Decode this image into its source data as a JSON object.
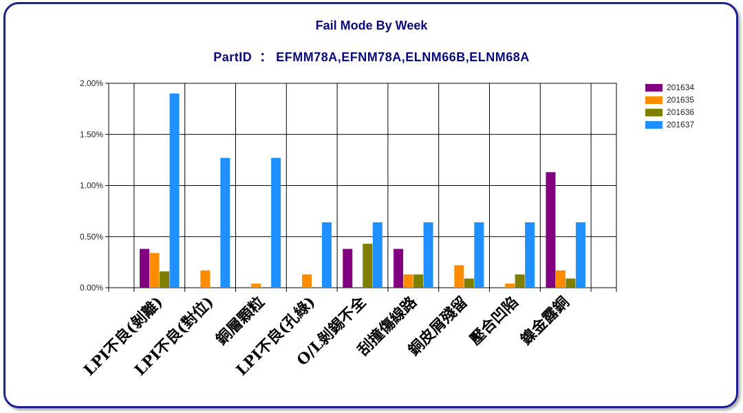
{
  "title": "Fail Mode By Week",
  "subtitle": "PartID  ： EFMM78A,EFNM78A,ELNM66B,ELNM68A",
  "chart_data": {
    "type": "bar",
    "categories": [
      "LPI不良(剝離)",
      "LPI不良(對位)",
      "銅層顆粒",
      "LPI不良(孔綠)",
      "O/L剝錫不全",
      "刮撞傷線路",
      "銅皮屑殘留",
      "壓合凹陷",
      "鎳金露銅"
    ],
    "series": [
      {
        "name": "201634",
        "color": "#800080",
        "values": [
          0.38,
          0,
          0,
          0,
          0.38,
          0.38,
          0,
          0,
          1.13
        ]
      },
      {
        "name": "201635",
        "color": "#ff8c00",
        "values": [
          0.34,
          0.17,
          0.04,
          0.13,
          0,
          0.13,
          0.22,
          0.04,
          0.17
        ]
      },
      {
        "name": "201636",
        "color": "#808000",
        "values": [
          0.16,
          0,
          0,
          0,
          0.43,
          0.13,
          0.09,
          0.13,
          0.09
        ]
      },
      {
        "name": "201637",
        "color": "#1e90ff",
        "values": [
          1.9,
          1.27,
          1.27,
          0.64,
          0.64,
          0.64,
          0.64,
          0.64,
          0.64
        ]
      }
    ],
    "ylim": [
      0,
      2.0
    ],
    "yticks": [
      "0.00%",
      "0.50%",
      "1.00%",
      "1.50%",
      "2.00%"
    ],
    "grid": true,
    "legend_position": "right"
  }
}
